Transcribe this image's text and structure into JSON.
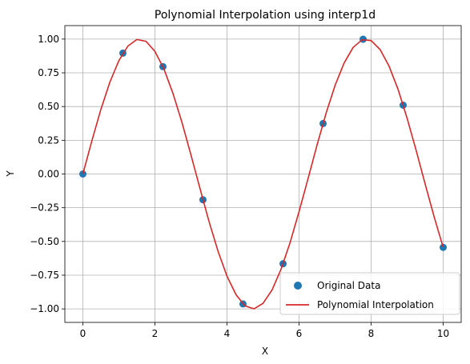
{
  "chart_data": {
    "type": "scatter",
    "title": "Polynomial Interpolation using interp1d",
    "xlabel": "X",
    "ylabel": "Y",
    "xlim": [
      -0.5,
      10.5
    ],
    "ylim": [
      -1.1,
      1.1
    ],
    "xticks": [
      0,
      2,
      4,
      6,
      8,
      10
    ],
    "xtick_labels": [
      "0",
      "2",
      "4",
      "6",
      "8",
      "10"
    ],
    "yticks": [
      -1.0,
      -0.75,
      -0.5,
      -0.25,
      0.0,
      0.25,
      0.5,
      0.75,
      1.0
    ],
    "ytick_labels": [
      "−1.00",
      "−0.75",
      "−0.50",
      "−0.25",
      "0.00",
      "0.25",
      "0.50",
      "0.75",
      "1.00"
    ],
    "grid": true,
    "legend_position": "lower-right",
    "series": [
      {
        "name": "Original Data",
        "kind": "scatter",
        "color": "#1f77b4",
        "x": [
          0.0,
          1.111,
          2.222,
          3.333,
          4.444,
          5.556,
          6.667,
          7.778,
          8.889,
          10.0
        ],
        "y": [
          0.0,
          0.896,
          0.796,
          -0.191,
          -0.963,
          -0.665,
          0.374,
          0.999,
          0.51,
          -0.544
        ]
      },
      {
        "name": "Polynomial Interpolation",
        "kind": "line",
        "color": "#d62728",
        "x": [
          0.0,
          0.25,
          0.5,
          0.75,
          1.0,
          1.25,
          1.5,
          1.75,
          2.0,
          2.25,
          2.5,
          2.75,
          3.0,
          3.25,
          3.5,
          3.75,
          4.0,
          4.25,
          4.5,
          4.75,
          5.0,
          5.25,
          5.5,
          5.75,
          6.0,
          6.25,
          6.5,
          6.75,
          7.0,
          7.25,
          7.5,
          7.75,
          8.0,
          8.25,
          8.5,
          8.75,
          9.0,
          9.25,
          9.5,
          9.75,
          10.0
        ],
        "y": [
          0.0,
          0.247,
          0.479,
          0.682,
          0.841,
          0.949,
          0.997,
          0.984,
          0.909,
          0.778,
          0.598,
          0.382,
          0.141,
          -0.108,
          -0.351,
          -0.572,
          -0.757,
          -0.895,
          -0.978,
          -0.999,
          -0.959,
          -0.859,
          -0.706,
          -0.508,
          -0.279,
          -0.033,
          0.215,
          0.451,
          0.657,
          0.823,
          0.938,
          0.995,
          0.989,
          0.922,
          0.798,
          0.625,
          0.412,
          0.174,
          -0.075,
          -0.319,
          -0.544
        ]
      }
    ]
  }
}
